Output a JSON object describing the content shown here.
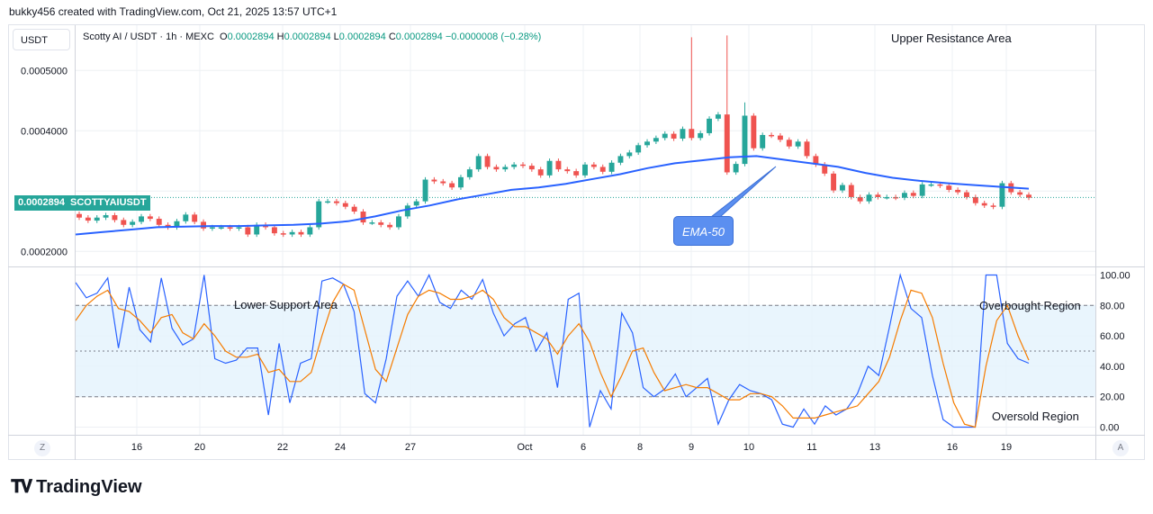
{
  "header": {
    "attribution": "bukky456 created with TradingView.com, Oct 21, 2025 13:57 UTC+1"
  },
  "toolbar": {
    "currency": "USDT",
    "left_button": "Z",
    "right_button": "A"
  },
  "legend": {
    "symbol": "Scotty AI / USDT · 1h · MEXC",
    "open_label": "O",
    "open": "0.0002894",
    "high_label": "H",
    "high": "0.0002894",
    "low_label": "L",
    "low": "0.0002894",
    "close_label": "C",
    "close": "0.0002894",
    "change": "−0.0000008 (−0.28%)"
  },
  "price_tag": {
    "value": "0.0002894",
    "ticker": "SCOTTYAIUSDT"
  },
  "annotations": {
    "upper_resistance": "Upper Resistance Area",
    "lower_support": "Lower Support Area",
    "overbought": "Overbought Region",
    "oversold": "Oversold Region",
    "ema_callout": "EMA-50"
  },
  "branding": {
    "logo_text": "TradingView"
  },
  "colors": {
    "bull": "#26a69a",
    "bear": "#ef5350",
    "ema": "#2962ff",
    "stoch_k": "#2962ff",
    "stoch_d": "#f57c00",
    "stoch_band": "#e3f2fd"
  },
  "chart_data": [
    {
      "type": "candlestick",
      "title": "Scotty AI / USDT · 1h · MEXC",
      "x_tick_labels": [
        "16",
        "20",
        "22",
        "24",
        "27",
        "Oct",
        "6",
        "8",
        "9",
        "10",
        "11",
        "13",
        "16",
        "19"
      ],
      "y_tick_labels": [
        "0.0002000",
        "0.0003000",
        "0.0004000",
        "0.0005000"
      ],
      "ylim": [
        0.000175,
        0.000575
      ],
      "last_price": 0.0002894,
      "grid": true,
      "candles": [
        [
          0.000262,
          0.000256
        ],
        [
          0.000256,
          0.000251
        ],
        [
          0.000251,
          0.000256
        ],
        [
          0.000256,
          0.00026
        ],
        [
          0.00026,
          0.000252
        ],
        [
          0.000252,
          0.000244
        ],
        [
          0.000244,
          0.000249
        ],
        [
          0.000249,
          0.000258
        ],
        [
          0.000258,
          0.000254
        ],
        [
          0.000254,
          0.000244
        ],
        [
          0.000244,
          0.00024
        ],
        [
          0.00024,
          0.00025
        ],
        [
          0.00025,
          0.000261
        ],
        [
          0.000261,
          0.000249
        ],
        [
          0.000249,
          0.000238
        ],
        [
          0.000238,
          0.00024
        ],
        [
          0.00024,
          0.00024
        ],
        [
          0.00024,
          0.000238
        ],
        [
          0.000238,
          0.00024
        ],
        [
          0.00024,
          0.000228
        ],
        [
          0.000228,
          0.000244
        ],
        [
          0.000244,
          0.00024
        ],
        [
          0.00024,
          0.00023
        ],
        [
          0.00023,
          0.000228
        ],
        [
          0.000228,
          0.000232
        ],
        [
          0.000232,
          0.000228
        ],
        [
          0.000228,
          0.00024
        ],
        [
          0.00024,
          0.000283
        ],
        [
          0.000283,
          0.000283
        ],
        [
          0.000283,
          0.00028
        ],
        [
          0.00028,
          0.000274
        ],
        [
          0.000274,
          0.000266
        ],
        [
          0.000266,
          0.000248
        ],
        [
          0.000248,
          0.000248
        ],
        [
          0.000248,
          0.000244
        ],
        [
          0.000244,
          0.00024
        ],
        [
          0.00024,
          0.000258
        ],
        [
          0.000258,
          0.000276
        ],
        [
          0.000276,
          0.000283
        ],
        [
          0.000283,
          0.000319
        ],
        [
          0.000319,
          0.000316
        ],
        [
          0.000316,
          0.000313
        ],
        [
          0.000313,
          0.000306
        ],
        [
          0.000306,
          0.000323
        ],
        [
          0.000323,
          0.000336
        ],
        [
          0.000336,
          0.000358
        ],
        [
          0.000358,
          0.00034
        ],
        [
          0.00034,
          0.000336
        ],
        [
          0.000336,
          0.00034
        ],
        [
          0.00034,
          0.000344
        ],
        [
          0.000344,
          0.000342
        ],
        [
          0.000342,
          0.000336
        ],
        [
          0.000336,
          0.000326
        ],
        [
          0.000326,
          0.00035
        ],
        [
          0.00035,
          0.000336
        ],
        [
          0.000336,
          0.000333
        ],
        [
          0.000333,
          0.000326
        ],
        [
          0.000326,
          0.000344
        ],
        [
          0.000344,
          0.00034
        ],
        [
          0.00034,
          0.000332
        ],
        [
          0.000332,
          0.000347
        ],
        [
          0.000347,
          0.000358
        ],
        [
          0.000358,
          0.000364
        ],
        [
          0.000364,
          0.000376
        ],
        [
          0.000376,
          0.000382
        ],
        [
          0.000382,
          0.000388
        ],
        [
          0.000388,
          0.000395
        ],
        [
          0.000395,
          0.000387
        ],
        [
          0.000387,
          0.000403
        ],
        [
          0.000403,
          0.000388
        ],
        [
          0.000388,
          0.000396
        ],
        [
          0.000396,
          0.00042
        ],
        [
          0.00042,
          0.000427
        ],
        [
          0.000427,
          0.000331
        ],
        [
          0.000331,
          0.000345
        ],
        [
          0.000345,
          0.000425
        ],
        [
          0.000425,
          0.000371
        ],
        [
          0.000371,
          0.000393
        ],
        [
          0.000393,
          0.000392
        ],
        [
          0.000392,
          0.000385
        ],
        [
          0.000385,
          0.000374
        ],
        [
          0.000374,
          0.000382
        ],
        [
          0.000382,
          0.000358
        ],
        [
          0.000358,
          0.000344
        ],
        [
          0.000344,
          0.000329
        ],
        [
          0.000329,
          0.000301
        ],
        [
          0.000301,
          0.00031
        ],
        [
          0.00031,
          0.00029
        ],
        [
          0.00029,
          0.000283
        ],
        [
          0.000283,
          0.000294
        ],
        [
          0.000294,
          0.00029
        ],
        [
          0.00029,
          0.00029
        ],
        [
          0.00029,
          0.000289
        ],
        [
          0.000289,
          0.000297
        ],
        [
          0.000297,
          0.000292
        ],
        [
          0.000292,
          0.000311
        ],
        [
          0.000311,
          0.000311
        ],
        [
          0.000311,
          0.000309
        ],
        [
          0.000309,
          0.000302
        ],
        [
          0.000302,
          0.000298
        ],
        [
          0.000298,
          0.00029
        ],
        [
          0.00029,
          0.00028
        ],
        [
          0.00028,
          0.000276
        ],
        [
          0.000276,
          0.000274
        ],
        [
          0.000274,
          0.000313
        ],
        [
          0.000313,
          0.000298
        ],
        [
          0.000298,
          0.000294
        ],
        [
          0.000294,
          0.000289
        ]
      ],
      "ema_50": [
        0.000228,
        0.000232,
        0.000236,
        0.00024,
        0.000241,
        0.000242,
        0.000242,
        0.000243,
        0.000244,
        0.000246,
        0.00025,
        0.000258,
        0.000268,
        0.000276,
        0.000286,
        0.000294,
        0.000302,
        0.000306,
        0.000312,
        0.00032,
        0.000328,
        0.000338,
        0.000346,
        0.000351,
        0.000356,
        0.000358,
        0.000352,
        0.000346,
        0.00034,
        0.00033,
        0.000322,
        0.000317,
        0.000313,
        0.00031,
        0.000307,
        0.000304
      ]
    },
    {
      "type": "line",
      "title": "Stochastic",
      "y_tick_labels": [
        "0.00",
        "20.00",
        "40.00",
        "60.00",
        "80.00",
        "100.00"
      ],
      "ylim": [
        -5,
        105
      ],
      "bands": [
        20,
        50,
        80
      ],
      "series": [
        {
          "name": "",
          "values": [
            95,
            85,
            88,
            98,
            52,
            92,
            64,
            56,
            98,
            65,
            54,
            58,
            100,
            45,
            42,
            44,
            52,
            52,
            8,
            55,
            16,
            42,
            45,
            96,
            98,
            94,
            76,
            22,
            16,
            45,
            86,
            96,
            86,
            100,
            82,
            78,
            90,
            84,
            97,
            75,
            60,
            68,
            72,
            50,
            62,
            26,
            84,
            88,
            0,
            24,
            12,
            75,
            62,
            26,
            20,
            25,
            35,
            20,
            26,
            32,
            2,
            18,
            28,
            24,
            22,
            18,
            2,
            0,
            12,
            2,
            14,
            8,
            12,
            22,
            40,
            34,
            66,
            100,
            78,
            72,
            34,
            5,
            0,
            0,
            0,
            100,
            100,
            55,
            45,
            42
          ]
        },
        {
          "name": "",
          "values": [
            70,
            80,
            86,
            90,
            78,
            76,
            70,
            62,
            72,
            74,
            62,
            58,
            68,
            60,
            50,
            46,
            46,
            48,
            36,
            38,
            30,
            30,
            36,
            60,
            82,
            94,
            90,
            64,
            38,
            30,
            52,
            74,
            86,
            90,
            88,
            84,
            84,
            86,
            90,
            84,
            72,
            66,
            66,
            62,
            58,
            48,
            60,
            68,
            56,
            36,
            20,
            34,
            50,
            52,
            36,
            24,
            26,
            28,
            26,
            26,
            22,
            18,
            18,
            22,
            22,
            20,
            14,
            6,
            6,
            6,
            8,
            10,
            12,
            14,
            22,
            30,
            46,
            70,
            90,
            88,
            72,
            42,
            16,
            2,
            0,
            40,
            70,
            80,
            60,
            44
          ]
        }
      ]
    }
  ]
}
